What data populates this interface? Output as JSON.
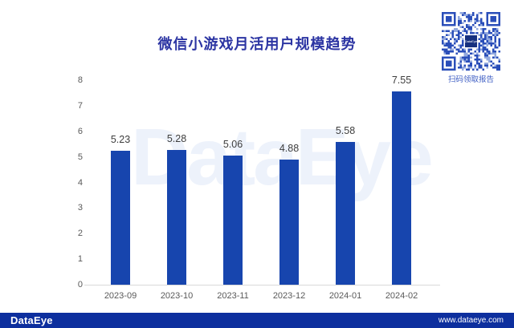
{
  "title": "微信小游戏月活用户规模趋势",
  "qr": {
    "caption": "扫码领取报告",
    "center_logo": "DataEye"
  },
  "watermark": "DataEye",
  "footer": {
    "logo": "DataEye",
    "url": "www.dataeye.com"
  },
  "colors": {
    "bar": "#1745ae",
    "title": "#2c35a3",
    "footer_band": "#0d2f9e",
    "axis_text": "#595959",
    "value_text": "#3d3d3d",
    "baseline": "#d9d9d9",
    "watermark": "#edf2fb",
    "qr_caption": "#3d5dc3"
  },
  "chart_data": {
    "type": "bar",
    "title": "微信小游戏月活用户规模趋势",
    "categories": [
      "2023-09",
      "2023-10",
      "2023-11",
      "2023-12",
      "2024-01",
      "2024-02"
    ],
    "values": [
      5.23,
      5.28,
      5.06,
      4.88,
      5.58,
      7.55
    ],
    "value_labels": [
      "5.23",
      "5.28",
      "5.06",
      "4.88",
      "5.58",
      "7.55"
    ],
    "xlabel": "",
    "ylabel": "",
    "ylim": [
      0,
      8
    ],
    "yticks": [
      0,
      1,
      2,
      3,
      4,
      5,
      6,
      7,
      8
    ],
    "grid": false,
    "legend": false
  }
}
